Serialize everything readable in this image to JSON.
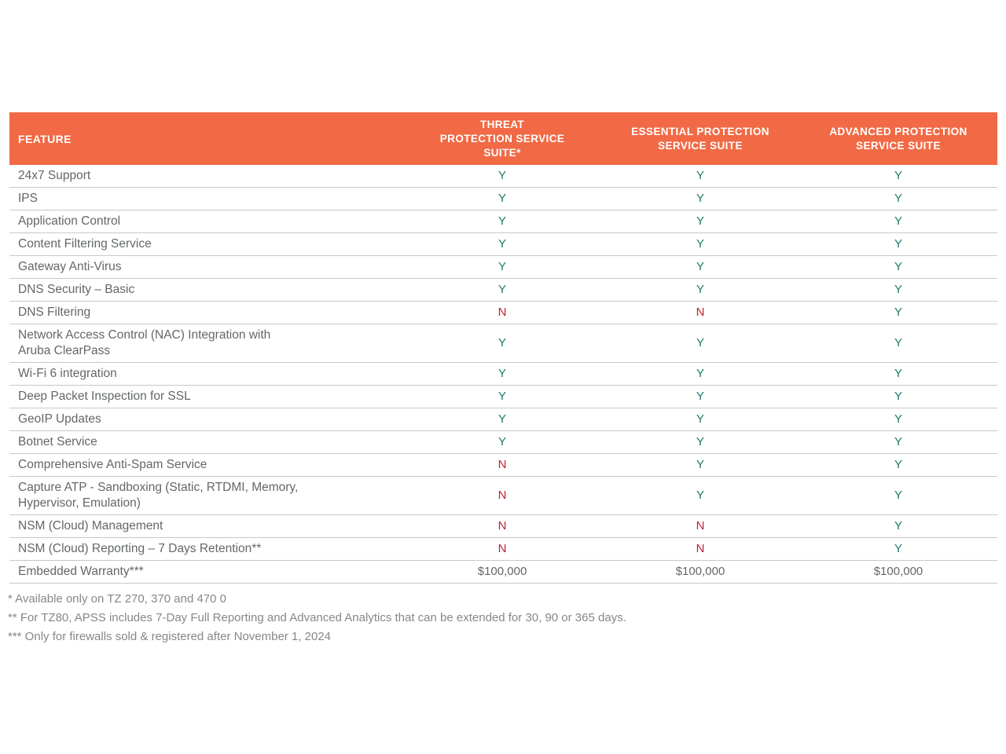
{
  "colors": {
    "header_bg": "#f16a45",
    "header_text": "#ffffff",
    "yes": "#1e7a6a",
    "no": "#c02031",
    "feature_text": "#63676a",
    "money_text": "#63676a",
    "footnote_text": "#85878a",
    "divider": "#c7c9ca"
  },
  "table": {
    "columns": [
      {
        "label": "FEATURE"
      },
      {
        "label": "THREAT\nPROTECTION SERVICE\nSUITE*"
      },
      {
        "label": "ESSENTIAL PROTECTION\nSERVICE SUITE"
      },
      {
        "label": "ADVANCED PROTECTION\nSERVICE SUITE"
      }
    ],
    "rows": [
      {
        "feature": "24x7 Support",
        "values": [
          "Y",
          "Y",
          "Y"
        ]
      },
      {
        "feature": "IPS",
        "values": [
          "Y",
          "Y",
          "Y"
        ]
      },
      {
        "feature": "Application Control",
        "values": [
          "Y",
          "Y",
          "Y"
        ]
      },
      {
        "feature": "Content Filtering Service",
        "values": [
          "Y",
          "Y",
          "Y"
        ]
      },
      {
        "feature": "Gateway Anti-Virus",
        "values": [
          "Y",
          "Y",
          "Y"
        ]
      },
      {
        "feature": "DNS Security – Basic",
        "values": [
          "Y",
          "Y",
          "Y"
        ]
      },
      {
        "feature": "DNS Filtering",
        "values": [
          "N",
          "N",
          "Y"
        ]
      },
      {
        "feature": "Network Access Control (NAC) Integration with\nAruba ClearPass",
        "values": [
          "Y",
          "Y",
          "Y"
        ]
      },
      {
        "feature": "Wi-Fi 6 integration",
        "values": [
          "Y",
          "Y",
          "Y"
        ]
      },
      {
        "feature": "Deep Packet Inspection for SSL",
        "values": [
          "Y",
          "Y",
          "Y"
        ]
      },
      {
        "feature": "GeoIP Updates",
        "values": [
          "Y",
          "Y",
          "Y"
        ]
      },
      {
        "feature": "Botnet Service",
        "values": [
          "Y",
          "Y",
          "Y"
        ]
      },
      {
        "feature": "Comprehensive Anti-Spam Service",
        "values": [
          "N",
          "Y",
          "Y"
        ]
      },
      {
        "feature": "Capture ATP -  Sandboxing (Static, RTDMI, Memory,\nHypervisor, Emulation)",
        "values": [
          "N",
          "Y",
          "Y"
        ]
      },
      {
        "feature": "NSM (Cloud) Management",
        "values": [
          "N",
          "N",
          "Y"
        ]
      },
      {
        "feature": "NSM (Cloud) Reporting – 7 Days Retention**",
        "values": [
          "N",
          "N",
          "Y"
        ]
      },
      {
        "feature": "Embedded Warranty***",
        "values": [
          "$100,000",
          "$100,000",
          "$100,000"
        ]
      }
    ]
  },
  "footnotes": [
    "* Available only on TZ 270, 370 and 470 0",
    "** For TZ80, APSS includes 7-Day Full Reporting and Advanced Analytics that can be extended for 30, 90 or 365 days.",
    "*** Only for firewalls sold & registered after November 1, 2024"
  ]
}
